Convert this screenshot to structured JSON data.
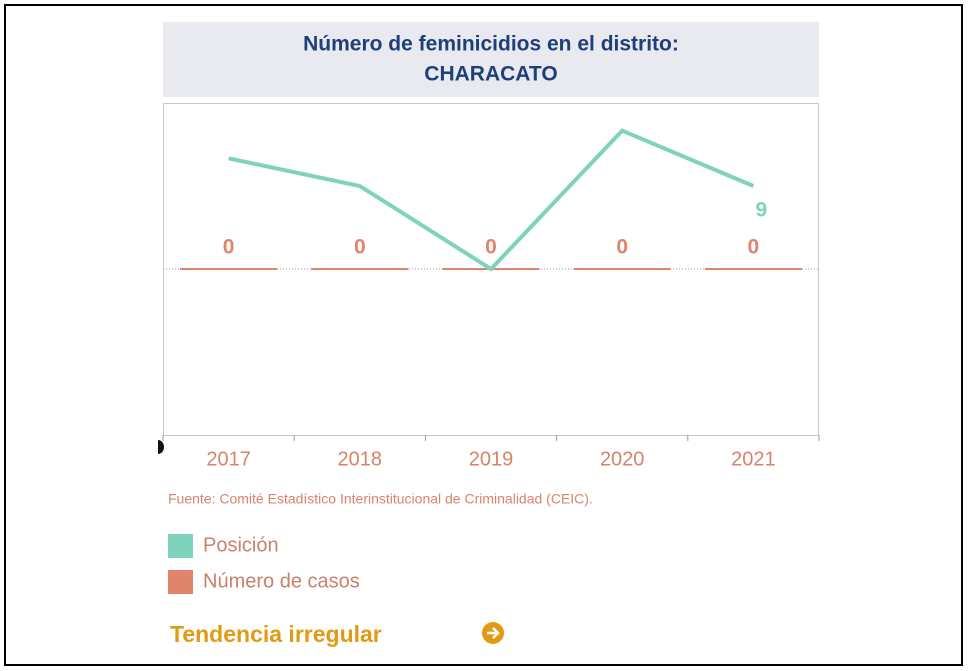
{
  "chart_data": {
    "type": "bar_line",
    "title": "Número de feminicidios en el distrito:",
    "subtitle": "CHARACATO",
    "categories": [
      "2017",
      "2018",
      "2019",
      "2020",
      "2021"
    ],
    "series": [
      {
        "name": "Número de casos",
        "color": "#e0846d",
        "type": "bar",
        "values": [
          0,
          0,
          0,
          0,
          0
        ]
      },
      {
        "name": "Posición",
        "color": "#7fd3bd",
        "type": "line",
        "axis": "y2",
        "values": [
          12,
          9,
          0,
          15,
          9
        ]
      }
    ],
    "ylim": [
      -1,
      1
    ],
    "y2lim": [
      -18,
      18
    ],
    "source": "Fuente: Comité Estadístico Interinstitucional de Criminalidad (CEIC).",
    "trend": "Tendencia irregular"
  }
}
